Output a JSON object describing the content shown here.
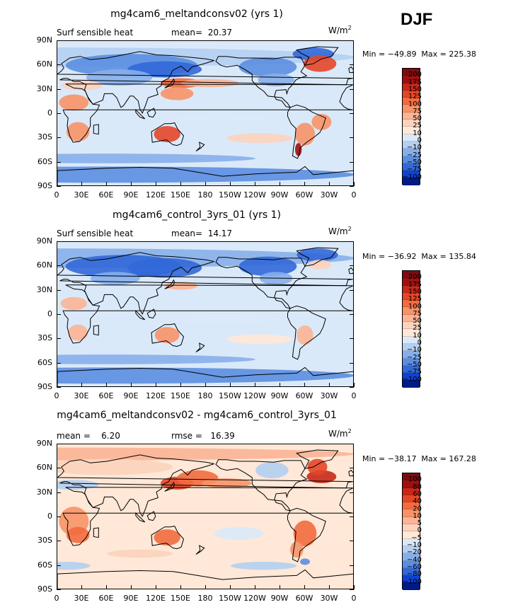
{
  "season": "DJF",
  "units_text": "W/m",
  "units_sup": "2",
  "x_labels": [
    "0",
    "30E",
    "60E",
    "90E",
    "120E",
    "150E",
    "180",
    "150W",
    "120W",
    "90W",
    "60W",
    "30W",
    "0"
  ],
  "y_labels": [
    "90N",
    "60N",
    "30N",
    "0",
    "30S",
    "60S",
    "90S"
  ],
  "colors": {
    "pos": [
      "#ffe8d7",
      "#fcd3bc",
      "#fbb495",
      "#f79368",
      "#f26b3f",
      "#e44628",
      "#c82818",
      "#a00f10",
      "#7d0c10"
    ],
    "neg": [
      "#dae9f9",
      "#b4cff2",
      "#86afea",
      "#5b8ee0",
      "#3268d8",
      "#0f42d2",
      "#002ab6",
      "#001a86"
    ]
  },
  "panels": [
    {
      "title": "mg4cam6_meltandconsv02 (yrs 1)",
      "left_label": "Surf sensible heat",
      "stat_text": "mean=  20.37",
      "min_max": "Min = −49.89  Max = 225.38",
      "colorbar_labels": [
        "200",
        "175",
        "150",
        "125",
        "100",
        "75",
        "50",
        "25",
        "10",
        "0",
        "−10",
        "−25",
        "−50",
        "−75",
        "−100"
      ]
    },
    {
      "title": "mg4cam6_control_3yrs_01 (yrs 1)",
      "left_label": "Surf sensible heat",
      "stat_text": "mean=  14.17",
      "min_max": "Min = −36.92  Max = 135.84",
      "colorbar_labels": [
        "200",
        "175",
        "150",
        "125",
        "100",
        "75",
        "50",
        "25",
        "10",
        "0",
        "−10",
        "−25",
        "−50",
        "−75",
        "−100"
      ]
    },
    {
      "title": "mg4cam6_meltandconsv02 - mg4cam6_control_3yrs_01",
      "left_label": "mean =    6.20",
      "stat_text": "rmse =   16.39",
      "min_max": "Min = −38.17  Max = 167.28",
      "colorbar_labels": [
        "100",
        "80",
        "60",
        "40",
        "20",
        "10",
        "5",
        "0",
        "−5",
        "−10",
        "−20",
        "−40",
        "−60",
        "−80",
        "−100"
      ]
    }
  ],
  "chart_data": [
    {
      "type": "heatmap",
      "title": "mg4cam6_meltandconsv02 (yrs 1)",
      "variable": "Surf sensible heat",
      "units": "W/m2",
      "mean": 20.37,
      "min": -49.89,
      "max": 225.38,
      "x_range": [
        0,
        360
      ],
      "y_range": [
        -90,
        90
      ],
      "contour_levels": [
        -100,
        -75,
        -50,
        -25,
        -10,
        0,
        10,
        25,
        50,
        75,
        100,
        125,
        150,
        175,
        200
      ]
    },
    {
      "type": "heatmap",
      "title": "mg4cam6_control_3yrs_01 (yrs 1)",
      "variable": "Surf sensible heat",
      "units": "W/m2",
      "mean": 14.17,
      "min": -36.92,
      "max": 135.84,
      "x_range": [
        0,
        360
      ],
      "y_range": [
        -90,
        90
      ],
      "contour_levels": [
        -100,
        -75,
        -50,
        -25,
        -10,
        0,
        10,
        25,
        50,
        75,
        100,
        125,
        150,
        175,
        200
      ]
    },
    {
      "type": "heatmap",
      "title": "mg4cam6_meltandconsv02 - mg4cam6_control_3yrs_01",
      "units": "W/m2",
      "mean": 6.2,
      "rmse": 16.39,
      "min": -38.17,
      "max": 167.28,
      "x_range": [
        0,
        360
      ],
      "y_range": [
        -90,
        90
      ],
      "contour_levels": [
        -100,
        -80,
        -60,
        -40,
        -20,
        -10,
        -5,
        0,
        5,
        10,
        20,
        40,
        60,
        80,
        100
      ]
    }
  ]
}
